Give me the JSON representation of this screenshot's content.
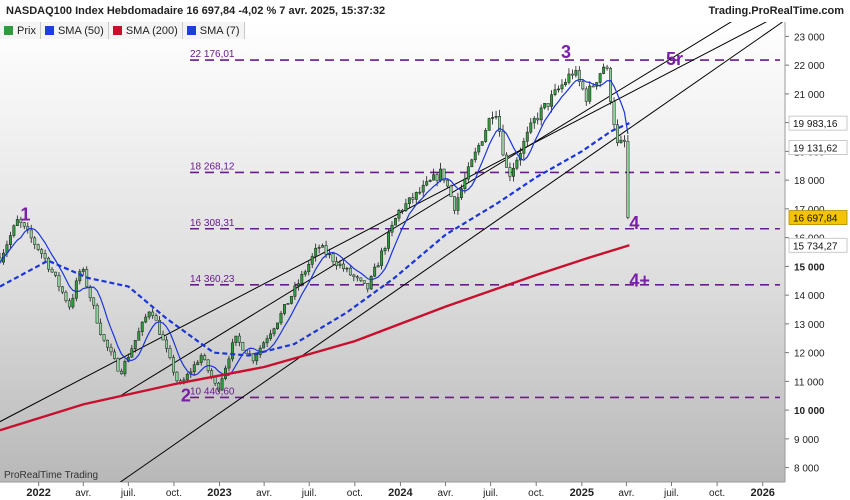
{
  "header": {
    "title": "NASDAQ100 Index Hebdomadaire 16 697,84 -4,02 % 7 avr. 2025, 15:37:32",
    "brand": "Trading.ProRealTime.com"
  },
  "legend": [
    {
      "label": "Prix",
      "color": "#2f9a3e"
    },
    {
      "label": "SMA (50)",
      "color": "#1c3de0"
    },
    {
      "label": "SMA (200)",
      "color": "#c8102e"
    },
    {
      "label": "SMA (7)",
      "color": "#1c3de0"
    }
  ],
  "footer": "ProRealTime Trading",
  "colors": {
    "candle": "#2f9a3e",
    "sma50": "#1a35d8",
    "sma200": "#c8102e",
    "sma7": "#1a35d8",
    "level_line": "#6a1b8c",
    "wave_label": "#7a1fa8",
    "channel": "#000000"
  },
  "chart_data": {
    "type": "candlestick",
    "x_range": [
      "2021-10-15",
      "2026-02-15"
    ],
    "y_range": [
      7500,
      23500
    ],
    "y_ticks": [
      {
        "value": 8000,
        "label": "8 000"
      },
      {
        "value": 9000,
        "label": "9 000"
      },
      {
        "value": 10000,
        "label": "10 000"
      },
      {
        "value": 11000,
        "label": "11 000"
      },
      {
        "value": 12000,
        "label": "12 000"
      },
      {
        "value": 13000,
        "label": "13 000"
      },
      {
        "value": 14000,
        "label": "14 000"
      },
      {
        "value": 15000,
        "label": "15 000"
      },
      {
        "value": 16000,
        "label": "16 000"
      },
      {
        "value": 17000,
        "label": "17 000"
      },
      {
        "value": 18000,
        "label": "18 000"
      },
      {
        "value": 19000,
        "label": "19 000"
      },
      {
        "value": 20000,
        "label": "20 000"
      },
      {
        "value": 21000,
        "label": "21 000"
      },
      {
        "value": 22000,
        "label": "22 000"
      },
      {
        "value": 23000,
        "label": "23 000"
      }
    ],
    "bold_y_ticks": [
      10000,
      15000
    ],
    "x_ticks": [
      {
        "date": "2022-01-01",
        "label": "2022",
        "bold": true
      },
      {
        "date": "2022-04-01",
        "label": "avr.",
        "bold": false
      },
      {
        "date": "2022-07-01",
        "label": "juil.",
        "bold": false
      },
      {
        "date": "2022-10-01",
        "label": "oct.",
        "bold": false
      },
      {
        "date": "2023-01-01",
        "label": "2023",
        "bold": true
      },
      {
        "date": "2023-04-01",
        "label": "avr.",
        "bold": false
      },
      {
        "date": "2023-07-01",
        "label": "juil.",
        "bold": false
      },
      {
        "date": "2023-10-01",
        "label": "oct.",
        "bold": false
      },
      {
        "date": "2024-01-01",
        "label": "2024",
        "bold": true
      },
      {
        "date": "2024-04-01",
        "label": "avr.",
        "bold": false
      },
      {
        "date": "2024-07-01",
        "label": "juil.",
        "bold": false
      },
      {
        "date": "2024-10-01",
        "label": "oct.",
        "bold": false
      },
      {
        "date": "2025-01-01",
        "label": "2025",
        "bold": true
      },
      {
        "date": "2025-04-01",
        "label": "avr.",
        "bold": false
      },
      {
        "date": "2025-07-01",
        "label": "juil.",
        "bold": false
      },
      {
        "date": "2025-10-01",
        "label": "oct.",
        "bold": false
      },
      {
        "date": "2026-01-01",
        "label": "2026",
        "bold": true
      }
    ],
    "levels": [
      {
        "value": 22176.01,
        "label": "22 176,01"
      },
      {
        "value": 18268.12,
        "label": "18 268,12"
      },
      {
        "value": 16308.31,
        "label": "16 308,31"
      },
      {
        "value": 14360.23,
        "label": "14 360,23"
      },
      {
        "value": 10440.6,
        "label": "10 440,60"
      }
    ],
    "price_tags": [
      {
        "value": 19983.16,
        "label": "19 983,16",
        "style": "plain"
      },
      {
        "value": 19131.62,
        "label": "19 131,62",
        "style": "plain"
      },
      {
        "value": 16697.84,
        "label": "16 697,84",
        "style": "last"
      },
      {
        "value": 15734.27,
        "label": "15 734,27",
        "style": "plain"
      }
    ],
    "wave_labels": [
      {
        "label": "1",
        "date": "2021-11-25",
        "value": 16600
      },
      {
        "label": "2",
        "date": "2022-10-15",
        "value": 10300
      },
      {
        "label": "3",
        "date": "2024-11-20",
        "value": 22250
      },
      {
        "label": "4",
        "date": "2025-04-07",
        "value": 16300
      },
      {
        "label": "4+",
        "date": "2025-04-07",
        "value": 14300
      },
      {
        "label": "5r",
        "date": "2025-06-20",
        "value": 22000
      }
    ],
    "channel_lines": [
      {
        "start": {
          "date": "2022-06-15",
          "value": 10500
        },
        "end": {
          "date": "2026-02-10",
          "value": 24600
        }
      },
      {
        "start": {
          "date": "2021-10-15",
          "value": 9600
        },
        "end": {
          "date": "2026-02-10",
          "value": 23800
        }
      },
      {
        "start": {
          "date": "2022-06-15",
          "value": 7500
        },
        "end": {
          "date": "2026-02-10",
          "value": 23500
        }
      }
    ],
    "ohlc_anchors": [
      {
        "date": "2021-10-15",
        "value": 15300
      },
      {
        "date": "2021-11-20",
        "value": 16600
      },
      {
        "date": "2022-01-10",
        "value": 15400
      },
      {
        "date": "2022-03-05",
        "value": 13600
      },
      {
        "date": "2022-03-28",
        "value": 15000
      },
      {
        "date": "2022-05-10",
        "value": 12500
      },
      {
        "date": "2022-06-15",
        "value": 11300
      },
      {
        "date": "2022-08-15",
        "value": 13600
      },
      {
        "date": "2022-10-12",
        "value": 10800
      },
      {
        "date": "2022-11-25",
        "value": 11900
      },
      {
        "date": "2022-12-28",
        "value": 10700
      },
      {
        "date": "2023-02-01",
        "value": 12500
      },
      {
        "date": "2023-03-10",
        "value": 11800
      },
      {
        "date": "2023-05-01",
        "value": 13200
      },
      {
        "date": "2023-07-20",
        "value": 15700
      },
      {
        "date": "2023-10-26",
        "value": 14200
      },
      {
        "date": "2023-12-28",
        "value": 16900
      },
      {
        "date": "2024-03-25",
        "value": 18300
      },
      {
        "date": "2024-04-19",
        "value": 17100
      },
      {
        "date": "2024-07-10",
        "value": 20600
      },
      {
        "date": "2024-08-05",
        "value": 18100
      },
      {
        "date": "2024-09-28",
        "value": 20100
      },
      {
        "date": "2024-12-15",
        "value": 21800
      },
      {
        "date": "2025-01-10",
        "value": 20900
      },
      {
        "date": "2025-02-18",
        "value": 22100
      },
      {
        "date": "2025-03-14",
        "value": 19200
      },
      {
        "date": "2025-03-28",
        "value": 19300
      },
      {
        "date": "2025-04-07",
        "value": 16697.84
      }
    ],
    "sma50_points": [
      {
        "date": "2021-10-15",
        "value": 14300
      },
      {
        "date": "2022-01-20",
        "value": 15200
      },
      {
        "date": "2022-04-10",
        "value": 14600
      },
      {
        "date": "2022-07-01",
        "value": 14300
      },
      {
        "date": "2022-09-15",
        "value": 13200
      },
      {
        "date": "2022-12-20",
        "value": 12000
      },
      {
        "date": "2023-03-01",
        "value": 11900
      },
      {
        "date": "2023-06-01",
        "value": 12300
      },
      {
        "date": "2023-09-15",
        "value": 13400
      },
      {
        "date": "2023-12-20",
        "value": 14600
      },
      {
        "date": "2024-04-01",
        "value": 16100
      },
      {
        "date": "2024-07-15",
        "value": 17200
      },
      {
        "date": "2024-10-01",
        "value": 18100
      },
      {
        "date": "2025-01-01",
        "value": 19000
      },
      {
        "date": "2025-03-01",
        "value": 19700
      },
      {
        "date": "2025-04-07",
        "value": 19983.16
      }
    ],
    "sma200_points": [
      {
        "date": "2021-10-15",
        "value": 9300
      },
      {
        "date": "2022-04-01",
        "value": 10200
      },
      {
        "date": "2022-10-01",
        "value": 10900
      },
      {
        "date": "2023-04-01",
        "value": 11500
      },
      {
        "date": "2023-10-01",
        "value": 12400
      },
      {
        "date": "2024-04-01",
        "value": 13600
      },
      {
        "date": "2024-10-01",
        "value": 14700
      },
      {
        "date": "2025-01-15",
        "value": 15300
      },
      {
        "date": "2025-04-07",
        "value": 15734.27
      }
    ]
  }
}
